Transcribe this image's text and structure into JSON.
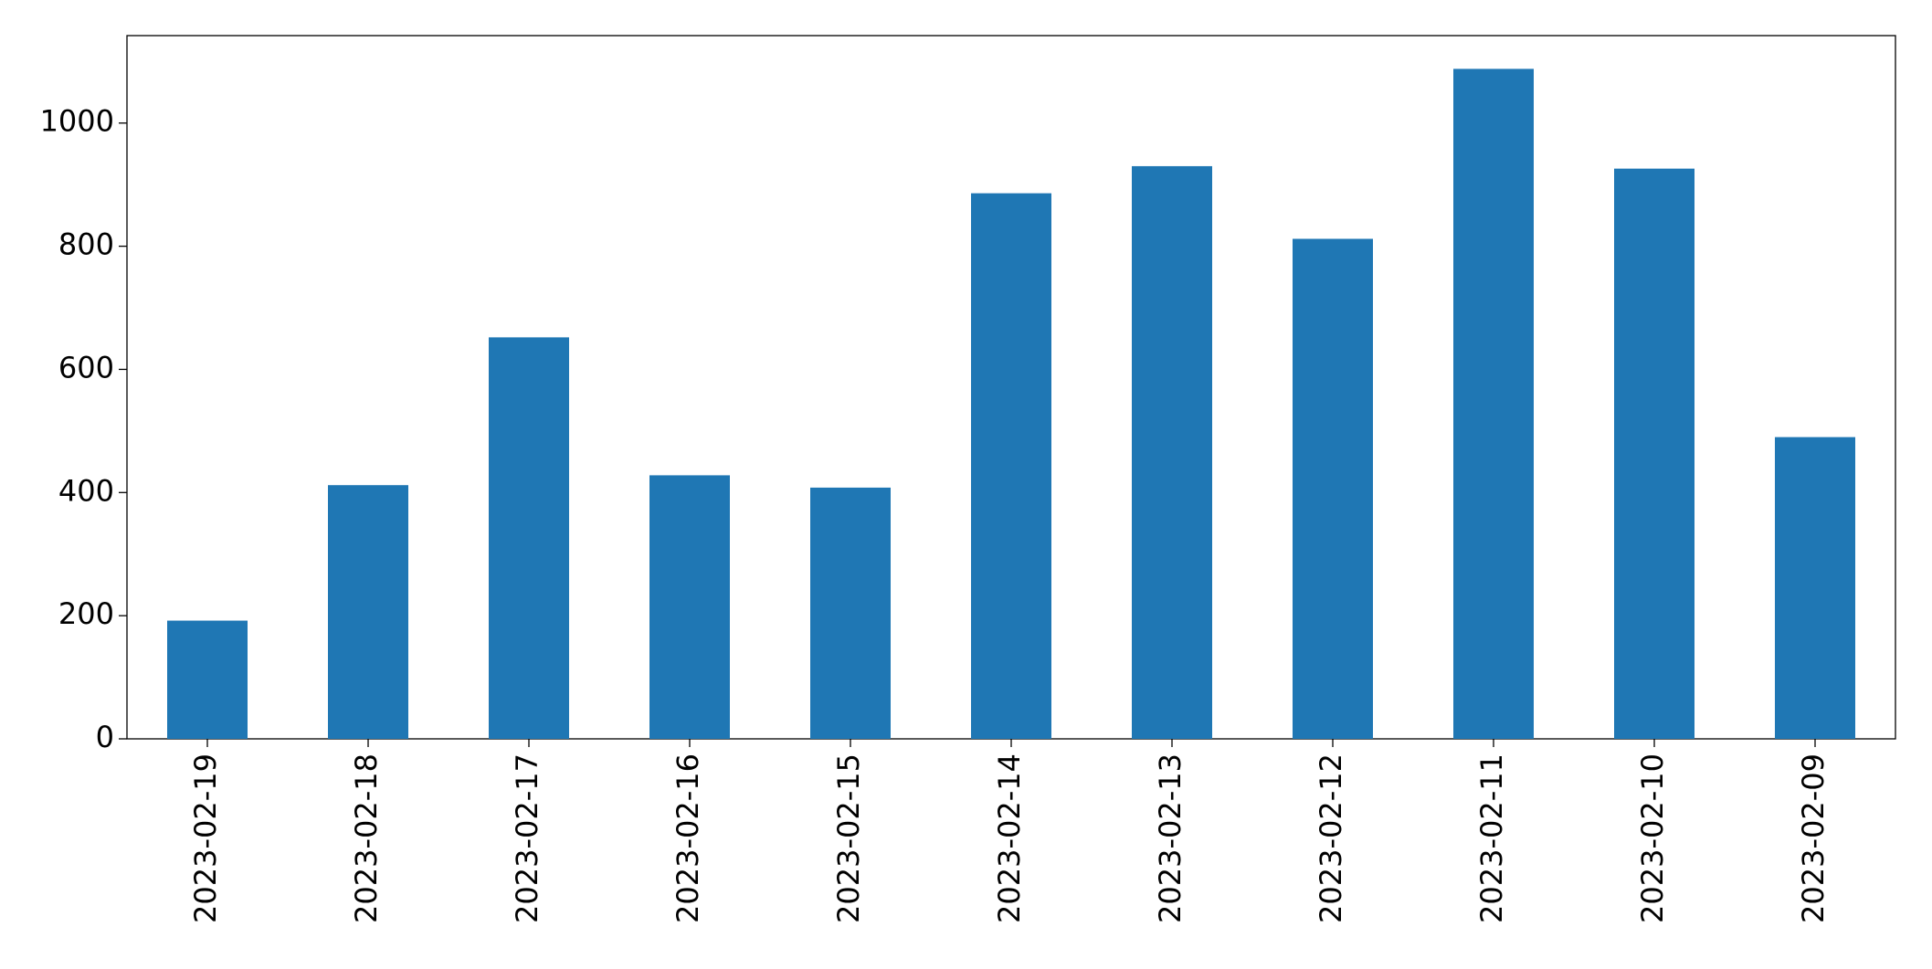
{
  "chart_data": {
    "type": "bar",
    "categories": [
      "2023-02-19",
      "2023-02-18",
      "2023-02-17",
      "2023-02-16",
      "2023-02-15",
      "2023-02-14",
      "2023-02-13",
      "2023-02-12",
      "2023-02-11",
      "2023-02-10",
      "2023-02-09"
    ],
    "values": [
      192,
      412,
      652,
      428,
      408,
      886,
      930,
      812,
      1088,
      926,
      490
    ],
    "color": "#1f77b4",
    "ylim": [
      0,
      1142
    ],
    "yticks": [
      0,
      200,
      400,
      600,
      800,
      1000
    ],
    "grid": false
  }
}
